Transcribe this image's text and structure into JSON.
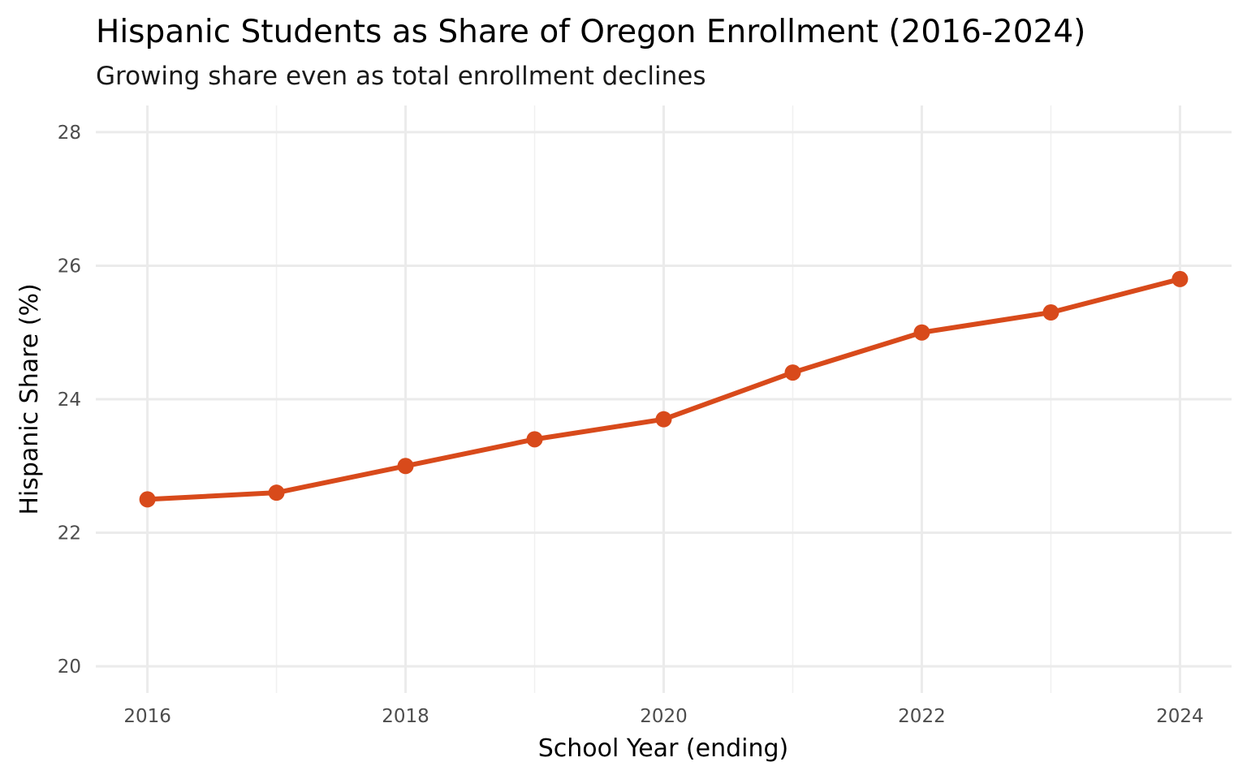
{
  "chart_data": {
    "type": "line",
    "title": "Hispanic Students as Share of Oregon Enrollment (2016-2024)",
    "subtitle": "Growing share even as total enrollment declines",
    "xlabel": "School Year (ending)",
    "ylabel": "Hispanic Share (%)",
    "xlim": [
      2015.6,
      2024.4
    ],
    "ylim": [
      19.6,
      28.4
    ],
    "x_ticks": [
      2016,
      2018,
      2020,
      2022,
      2024
    ],
    "y_ticks": [
      20,
      22,
      24,
      26,
      28
    ],
    "grid": true,
    "x": [
      2016,
      2017,
      2018,
      2019,
      2020,
      2021,
      2022,
      2023,
      2024
    ],
    "series": [
      {
        "values": [
          22.5,
          22.6,
          23.0,
          23.4,
          23.7,
          24.4,
          25.0,
          25.3,
          25.8
        ],
        "color": "#D84A1B"
      }
    ]
  }
}
